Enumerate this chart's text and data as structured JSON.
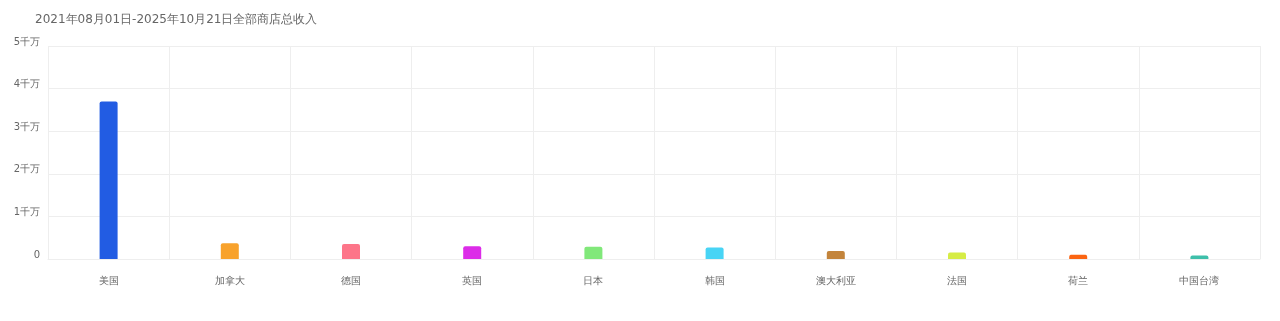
{
  "chart_data": {
    "type": "bar",
    "title": "2021年08月01日-2025年10月21日全部商店总收入",
    "categories": [
      "美国",
      "加拿大",
      "德国",
      "英国",
      "日本",
      "韩国",
      "澳大利亚",
      "法国",
      "荷兰",
      "中国台湾"
    ],
    "values": [
      3.7,
      0.37,
      0.35,
      0.3,
      0.29,
      0.27,
      0.19,
      0.15,
      0.1,
      0.08
    ],
    "colors": [
      "#225ce3",
      "#f8a22c",
      "#fd7589",
      "#dc2ce8",
      "#81e87a",
      "#48d4f5",
      "#c3843b",
      "#d6ec45",
      "#fb6412",
      "#3ebfaa"
    ],
    "ylim": [
      0,
      5
    ],
    "yticks": [
      0,
      {
        "value": 1,
        "label": "1千万"
      },
      {
        "value": 2,
        "label": "2千万"
      },
      {
        "value": 3,
        "label": "3千万"
      },
      {
        "value": 4,
        "label": "4千万"
      },
      {
        "value": 5,
        "label": "5千万"
      }
    ],
    "grid": true
  }
}
